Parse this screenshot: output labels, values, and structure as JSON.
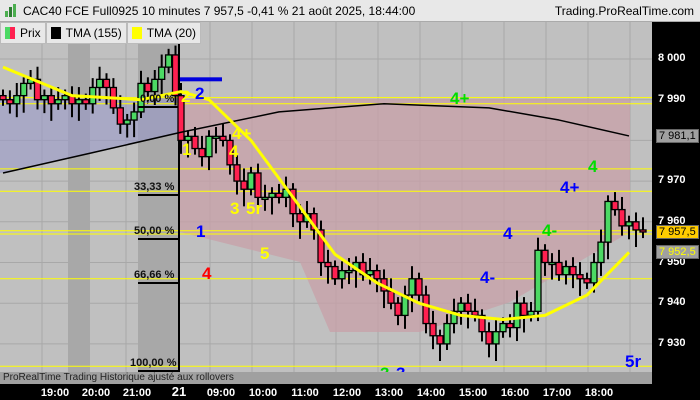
{
  "header": {
    "title": "CAC40 FCE Full0925 10 minutes 7 957,5 -0,41 % 21 août 2025, 18:44:00",
    "site": "Trading.ProRealTime.com"
  },
  "legend": [
    {
      "label": "Prix",
      "icon": "bicolor-candle-icon"
    },
    {
      "label": "TMA (155)",
      "color": "#000000"
    },
    {
      "label": "TMA (20)",
      "color": "#ffff00"
    }
  ],
  "price_axis": {
    "labels": [
      "8 000",
      "7 990",
      "7 970",
      "7 960",
      "7 950",
      "7 940",
      "7 930"
    ],
    "tags": [
      {
        "text": "7 981,1",
        "bg": "#a0a0a0",
        "fg": "#000"
      },
      {
        "text": "7 957,5",
        "bg": "#ffcc00",
        "fg": "#000"
      },
      {
        "text": "7 952,5",
        "bg": "#a0a0a0",
        "fg": "#ffff00"
      }
    ]
  },
  "time_axis": [
    "19:00",
    "20:00",
    "21:00",
    "21",
    "09:00",
    "10:00",
    "11:00",
    "12:00",
    "13:00",
    "14:00",
    "15:00",
    "16:00",
    "17:00",
    "18:00"
  ],
  "footer": "ProRealTime Trading  Historique ajusté aux rollovers",
  "fib_levels": [
    "0,00 %",
    "33,33 %",
    "50,00 %",
    "66,66 %",
    "100,00 %"
  ],
  "waves": [
    {
      "t": "2",
      "c": "#ffff00"
    },
    {
      "t": "2",
      "c": "#0000ff"
    },
    {
      "t": "1",
      "c": "#ffff00"
    },
    {
      "t": "4+",
      "c": "#ffff00"
    },
    {
      "t": "4",
      "c": "#ffff00"
    },
    {
      "t": "3",
      "c": "#ffff00"
    },
    {
      "t": "5r",
      "c": "#ffff00"
    },
    {
      "t": "1",
      "c": "#0000ff"
    },
    {
      "t": "5",
      "c": "#ffff00"
    },
    {
      "t": "4",
      "c": "#ff0000"
    },
    {
      "t": "4+",
      "c": "#00dd00"
    },
    {
      "t": "4",
      "c": "#00dd00"
    },
    {
      "t": "4+",
      "c": "#0000ff"
    },
    {
      "t": "4-",
      "c": "#00dd00"
    },
    {
      "t": "4",
      "c": "#0000ff"
    },
    {
      "t": "4-",
      "c": "#0000ff"
    },
    {
      "t": "4+",
      "c": "#ff0000"
    },
    {
      "t": "3",
      "c": "#00dd00"
    },
    {
      "t": "3",
      "c": "#0000ff"
    },
    {
      "t": "5r",
      "c": "#0000ff"
    }
  ],
  "colors": {
    "up": "#4cd964",
    "down": "#ff2050",
    "tma155": "#000000",
    "tma20": "#ffff00",
    "fib": "#ffff00"
  },
  "closes": [
    7990,
    7989,
    7991,
    7994,
    7995,
    7990,
    7991,
    7989,
    7990,
    7991,
    7989,
    7990,
    7989,
    7993,
    7995,
    7993,
    7988,
    7984,
    7985,
    7987,
    7994,
    7992,
    7995,
    7998,
    8001,
    7991,
    7980,
    7981,
    7978,
    7976,
    7981,
    7981,
    7980,
    7974,
    7970,
    7968,
    7972,
    7966,
    7966,
    7967,
    7966,
    7968,
    7962,
    7960,
    7962,
    7958,
    7950,
    7949,
    7946,
    7948,
    7948,
    7950,
    7947,
    7948,
    7946,
    7943,
    7940,
    7937,
    7942,
    7946,
    7942,
    7935,
    7932,
    7930,
    7935,
    7938,
    7940,
    7938,
    7937,
    7933,
    7930,
    7933,
    7935,
    7934,
    7940,
    7937,
    7938,
    7953,
    7950,
    7950,
    7947,
    7949,
    7947,
    7946,
    7945,
    7950,
    7955,
    7965,
    7963,
    7959,
    7960,
    7958,
    7957.5
  ],
  "tma20": [
    [
      0,
      7998
    ],
    [
      10,
      7991
    ],
    [
      20,
      7990
    ],
    [
      26,
      7992
    ],
    [
      30,
      7990
    ],
    [
      36,
      7980
    ],
    [
      42,
      7966
    ],
    [
      48,
      7952
    ],
    [
      54,
      7945
    ],
    [
      60,
      7940
    ],
    [
      66,
      7937
    ],
    [
      72,
      7936
    ],
    [
      78,
      7937
    ],
    [
      84,
      7942
    ],
    [
      90,
      7952.5
    ]
  ],
  "tma155": [
    [
      0,
      7972
    ],
    [
      13,
      7977
    ],
    [
      26,
      7982
    ],
    [
      40,
      7987
    ],
    [
      55,
      7989
    ],
    [
      70,
      7988
    ],
    [
      80,
      7985
    ],
    [
      90,
      7981.1
    ]
  ]
}
